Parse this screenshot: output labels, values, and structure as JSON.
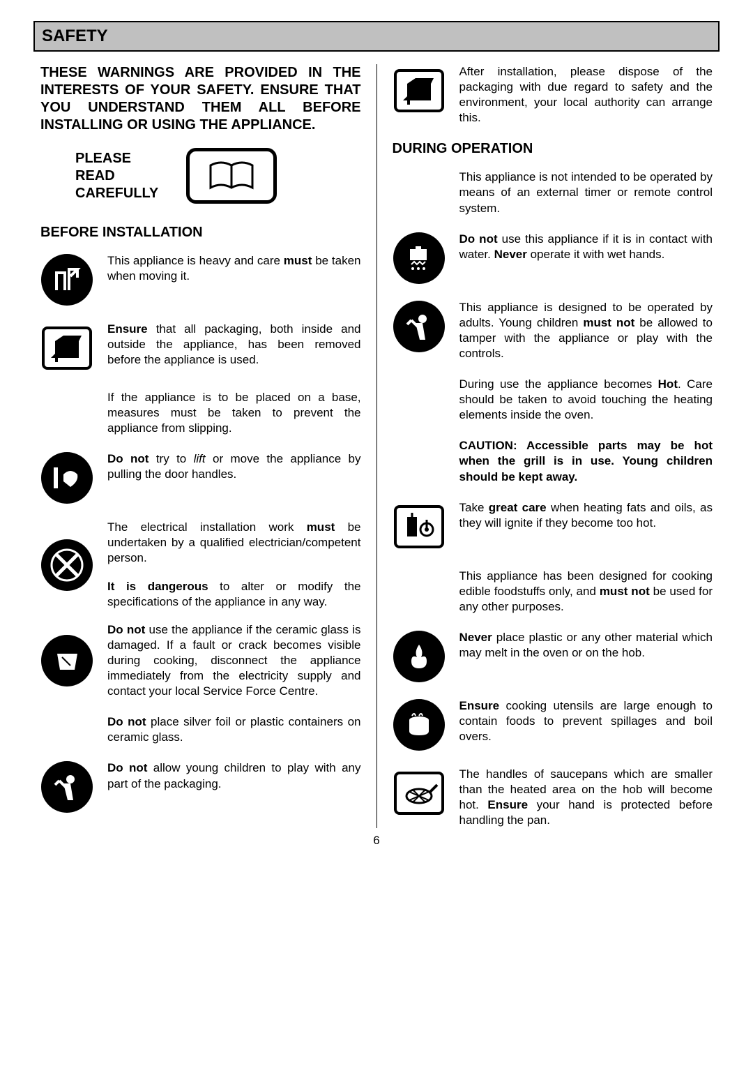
{
  "header": {
    "title": "SAFETY"
  },
  "intro": "THESE WARNINGS ARE PROVIDED IN THE INTERESTS OF YOUR SAFETY. ENSURE THAT YOU UNDERSTAND THEM ALL BEFORE INSTALLING OR USING THE APPLIANCE.",
  "read_label": "PLEASE READ CAREFULLY",
  "sections": {
    "before": "BEFORE INSTALLATION",
    "during": "DURING OPERATION"
  },
  "left": [
    {
      "icon": "lift-icon",
      "html": "This appliance is heavy and care <strong>must</strong> be taken when moving it."
    },
    {
      "icon": "box-icon",
      "html": "<strong>Ensure</strong> that all packaging, both inside and outside the appliance, has been removed before the appliance is used."
    },
    {
      "icon": "",
      "html": "If the appliance is to be placed on a base, measures must be taken to prevent the appliance from slipping."
    },
    {
      "icon": "handle-icon",
      "html": "<strong>Do not</strong> try to <em>lift</em> or move the appliance by pulling the door handles."
    },
    {
      "icon": "tools-icon",
      "html": "The electrical installation work <strong>must</strong> be undertaken by a qualified electrician/competent person."
    },
    {
      "icon": "tools-icon-same",
      "html": "<strong>It is dangerous</strong> to alter or modify the specifications of the appliance in any way."
    },
    {
      "icon": "glass-icon",
      "html": "<strong>Do not</strong> use the appliance if the ceramic glass is damaged. If a fault or crack becomes visible during cooking, disconnect the appliance immediately from the electricity supply and contact your local Service Force Centre."
    },
    {
      "icon": "",
      "html": "<strong>Do not</strong> place silver foil or plastic containers on ceramic glass."
    },
    {
      "icon": "child-icon",
      "html": "<strong>Do not</strong> allow young children to play with any part of the packaging."
    }
  ],
  "right": [
    {
      "icon": "box-icon",
      "html": "After installation, please dispose of the packaging with due regard to safety and the environment, your local authority can arrange this."
    },
    {
      "icon": "section",
      "html": "DURING OPERATION"
    },
    {
      "icon": "",
      "html": "This appliance is not intended to be operated by means of an external timer or remote control system."
    },
    {
      "icon": "wethands-icon",
      "html": "<strong>Do not</strong> use this appliance if it is in contact with water. <strong>Never</strong> operate it with wet hands."
    },
    {
      "icon": "child-icon",
      "html": "This appliance is designed to be operated by adults. Young children <strong>must not</strong> be allowed to tamper with the appliance or play with the controls."
    },
    {
      "icon": "",
      "html": "During use the appliance becomes <strong>Hot</strong>. Care should be taken to avoid touching the heating elements inside the oven."
    },
    {
      "icon": "",
      "html": "<strong>CAUTION: Accessible parts may be hot when the grill is in use. Young children should be kept away.</strong>"
    },
    {
      "icon": "fat-icon",
      "html": "Take <strong>great care</strong> when heating fats and oils, as they will ignite if they become too hot."
    },
    {
      "icon": "",
      "html": "This appliance has been designed for cooking edible foodstuffs only, and <strong>must not</strong> be used for any other purposes."
    },
    {
      "icon": "flame-icon",
      "html": "<strong>Never</strong> place plastic or any other material which may melt in the oven or on the hob."
    },
    {
      "icon": "pot-icon",
      "html": "<strong>Ensure</strong> cooking utensils are large enough to contain foods to prevent spillages and boil overs."
    },
    {
      "icon": "pan-icon",
      "html": "The handles of saucepans which are smaller than the heated area on the hob will become hot. <strong>Ensure</strong> your hand is protected before handling the pan."
    }
  ],
  "page_number": "6",
  "colors": {
    "header_bg": "#c0c0c0",
    "border": "#000000",
    "text": "#000000",
    "bg": "#ffffff"
  },
  "fonts": {
    "body_size": 17,
    "heading_size": 20,
    "title_size": 24
  }
}
